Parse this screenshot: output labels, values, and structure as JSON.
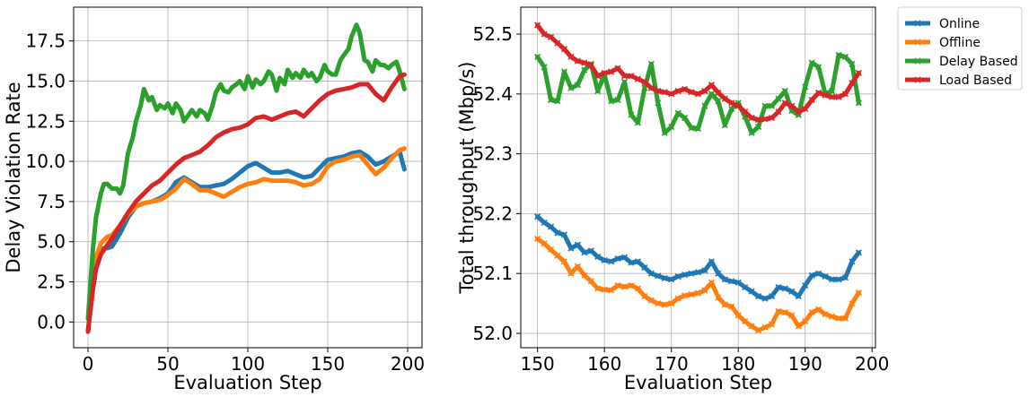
{
  "colors": {
    "Online": "#1f77b4",
    "Offline": "#ff7f0e",
    "Delay Based": "#2ca02c",
    "Load Based": "#d62728"
  },
  "chart_data": [
    {
      "type": "line",
      "xlabel": "Evaluation Step",
      "ylabel": "Delay Violation Rate",
      "xlim": [
        -9,
        209
      ],
      "ylim": [
        -1.6,
        19.6
      ],
      "xticks": [
        0,
        50,
        100,
        150,
        200
      ],
      "yticks": [
        0.0,
        2.5,
        5.0,
        7.5,
        10.0,
        12.5,
        15.0,
        17.5
      ],
      "xtick_labels": [
        "0",
        "50",
        "100",
        "150",
        "200"
      ],
      "ytick_labels": [
        "0.0",
        "2.5",
        "5.0",
        "7.5",
        "10.0",
        "12.5",
        "15.0",
        "17.5"
      ],
      "grid": true,
      "series": [
        {
          "name": "Online",
          "x": [
            0,
            3,
            5,
            8,
            10,
            12,
            15,
            20,
            25,
            30,
            35,
            40,
            45,
            50,
            55,
            60,
            65,
            70,
            75,
            80,
            85,
            90,
            95,
            100,
            105,
            110,
            115,
            120,
            125,
            130,
            135,
            140,
            145,
            150,
            155,
            160,
            165,
            170,
            175,
            180,
            185,
            190,
            195,
            198
          ],
          "values": [
            -0.6,
            2.4,
            3.6,
            4.4,
            4.6,
            4.6,
            4.7,
            5.5,
            6.5,
            7.2,
            7.4,
            7.5,
            7.7,
            8.0,
            8.7,
            9.0,
            8.7,
            8.4,
            8.4,
            8.5,
            8.6,
            8.9,
            9.3,
            9.7,
            9.9,
            9.6,
            9.3,
            9.3,
            9.4,
            9.2,
            9.0,
            9.1,
            9.6,
            10.1,
            10.2,
            10.3,
            10.5,
            10.6,
            10.3,
            9.8,
            10.0,
            10.3,
            10.6,
            9.5
          ]
        },
        {
          "name": "Offline",
          "x": [
            0,
            3,
            5,
            8,
            10,
            12,
            15,
            20,
            25,
            30,
            35,
            40,
            45,
            50,
            55,
            60,
            65,
            70,
            75,
            80,
            85,
            90,
            95,
            100,
            105,
            110,
            115,
            120,
            125,
            130,
            135,
            140,
            145,
            150,
            155,
            160,
            165,
            170,
            175,
            180,
            185,
            190,
            195,
            198
          ],
          "values": [
            -0.6,
            2.6,
            4.0,
            4.9,
            5.1,
            5.3,
            5.4,
            6.0,
            6.7,
            7.2,
            7.4,
            7.5,
            7.6,
            7.9,
            8.3,
            8.9,
            8.6,
            8.2,
            8.2,
            8.0,
            7.8,
            8.1,
            8.4,
            8.6,
            8.7,
            8.9,
            8.8,
            8.8,
            8.8,
            8.7,
            8.5,
            8.6,
            8.9,
            9.7,
            10.0,
            10.1,
            10.3,
            10.4,
            9.8,
            9.2,
            9.6,
            10.2,
            10.7,
            10.8
          ]
        },
        {
          "name": "Delay Based",
          "x": [
            0,
            3,
            5,
            8,
            10,
            12,
            15,
            18,
            20,
            22,
            25,
            28,
            30,
            33,
            35,
            38,
            40,
            43,
            45,
            48,
            50,
            53,
            55,
            58,
            60,
            63,
            65,
            68,
            70,
            73,
            75,
            78,
            80,
            83,
            85,
            88,
            90,
            93,
            95,
            98,
            100,
            103,
            105,
            108,
            110,
            113,
            115,
            118,
            120,
            123,
            125,
            128,
            130,
            133,
            135,
            138,
            140,
            143,
            145,
            148,
            150,
            153,
            155,
            158,
            160,
            163,
            165,
            168,
            170,
            173,
            175,
            178,
            180,
            183,
            185,
            188,
            190,
            193,
            195,
            198
          ],
          "values": [
            0.2,
            4.5,
            6.5,
            8.0,
            8.6,
            8.6,
            8.3,
            8.3,
            8.0,
            8.5,
            10.5,
            11.5,
            12.5,
            13.5,
            14.5,
            13.8,
            14.0,
            13.2,
            13.5,
            13.3,
            13.6,
            13.0,
            13.6,
            13.2,
            12.5,
            12.9,
            13.2,
            12.8,
            13.2,
            13.0,
            12.6,
            13.5,
            14.3,
            14.8,
            14.4,
            14.3,
            14.6,
            14.8,
            15.0,
            14.5,
            15.3,
            14.6,
            15.1,
            14.8,
            15.0,
            15.6,
            15.4,
            14.4,
            15.2,
            14.8,
            15.7,
            15.2,
            15.5,
            15.2,
            15.7,
            15.3,
            15.5,
            15.0,
            15.2,
            16.0,
            15.6,
            15.4,
            15.4,
            16.3,
            16.6,
            17.0,
            17.8,
            18.5,
            18.0,
            16.3,
            16.2,
            15.6,
            16.3,
            16.0,
            16.0,
            15.8,
            16.0,
            16.2,
            15.6,
            14.5
          ]
        },
        {
          "name": "Load Based",
          "x": [
            0,
            3,
            5,
            8,
            10,
            15,
            20,
            25,
            30,
            35,
            40,
            45,
            50,
            55,
            60,
            65,
            70,
            75,
            80,
            85,
            90,
            95,
            100,
            105,
            110,
            115,
            120,
            125,
            130,
            135,
            140,
            145,
            150,
            155,
            160,
            165,
            170,
            175,
            180,
            185,
            190,
            195,
            198
          ],
          "values": [
            -0.6,
            2.0,
            3.3,
            4.2,
            4.5,
            5.2,
            6.0,
            6.8,
            7.5,
            8.0,
            8.5,
            8.8,
            9.3,
            9.8,
            10.2,
            10.4,
            10.6,
            11.0,
            11.5,
            11.8,
            12.0,
            12.1,
            12.3,
            12.7,
            12.8,
            12.6,
            12.8,
            13.0,
            13.1,
            12.8,
            13.3,
            13.8,
            14.2,
            14.4,
            14.5,
            14.6,
            14.8,
            14.8,
            14.2,
            13.8,
            14.6,
            15.3,
            15.4
          ]
        }
      ]
    },
    {
      "type": "line",
      "xlabel": "Evaluation Step",
      "ylabel": "Total throughput (Mbp/s)",
      "xlim": [
        147.5,
        200.5
      ],
      "ylim": [
        51.976,
        52.545
      ],
      "xticks": [
        150,
        160,
        170,
        180,
        190,
        200
      ],
      "yticks": [
        52.0,
        52.1,
        52.2,
        52.3,
        52.4,
        52.5
      ],
      "xtick_labels": [
        "150",
        "160",
        "170",
        "180",
        "190",
        "200"
      ],
      "ytick_labels": [
        "52.0",
        "52.1",
        "52.2",
        "52.3",
        "52.4",
        "52.5"
      ],
      "grid": true,
      "legend": {
        "placement": "outside-upper-right",
        "entries": [
          "Online",
          "Offline",
          "Delay Based",
          "Load Based"
        ]
      },
      "series": [
        {
          "name": "Online",
          "x": [
            150,
            151,
            152,
            153,
            154,
            155,
            156,
            157,
            158,
            159,
            160,
            161,
            162,
            163,
            164,
            165,
            166,
            167,
            168,
            169,
            170,
            171,
            172,
            173,
            174,
            175,
            176,
            177,
            178,
            179,
            180,
            181,
            182,
            183,
            184,
            185,
            186,
            187,
            188,
            189,
            190,
            191,
            192,
            193,
            194,
            195,
            196,
            197,
            198
          ],
          "values": [
            52.195,
            52.185,
            52.178,
            52.168,
            52.165,
            52.142,
            52.148,
            52.135,
            52.138,
            52.128,
            52.122,
            52.12,
            52.125,
            52.127,
            52.118,
            52.12,
            52.11,
            52.1,
            52.096,
            52.092,
            52.09,
            52.095,
            52.098,
            52.1,
            52.102,
            52.105,
            52.12,
            52.1,
            52.09,
            52.087,
            52.085,
            52.077,
            52.07,
            52.062,
            52.058,
            52.062,
            52.077,
            52.075,
            52.07,
            52.062,
            52.08,
            52.097,
            52.1,
            52.095,
            52.09,
            52.09,
            52.093,
            52.12,
            52.135
          ]
        },
        {
          "name": "Offline",
          "x": [
            150,
            151,
            152,
            153,
            154,
            155,
            156,
            157,
            158,
            159,
            160,
            161,
            162,
            163,
            164,
            165,
            166,
            167,
            168,
            169,
            170,
            171,
            172,
            173,
            174,
            175,
            176,
            177,
            178,
            179,
            180,
            181,
            182,
            183,
            184,
            185,
            186,
            187,
            188,
            189,
            190,
            191,
            192,
            193,
            194,
            195,
            196,
            197,
            198
          ],
          "values": [
            52.158,
            52.15,
            52.14,
            52.13,
            52.12,
            52.1,
            52.112,
            52.097,
            52.087,
            52.075,
            52.073,
            52.072,
            52.08,
            52.078,
            52.08,
            52.075,
            52.062,
            52.055,
            52.05,
            52.048,
            52.05,
            52.058,
            52.063,
            52.065,
            52.067,
            52.072,
            52.085,
            52.06,
            52.048,
            52.045,
            52.03,
            52.02,
            52.012,
            52.005,
            52.01,
            52.015,
            52.037,
            52.035,
            52.03,
            52.012,
            52.02,
            52.035,
            52.04,
            52.032,
            52.028,
            52.025,
            52.025,
            52.05,
            52.068
          ]
        },
        {
          "name": "Delay Based",
          "x": [
            150,
            151,
            152,
            153,
            154,
            155,
            156,
            157,
            158,
            159,
            160,
            161,
            162,
            163,
            164,
            165,
            166,
            167,
            168,
            169,
            170,
            171,
            172,
            173,
            174,
            175,
            176,
            177,
            178,
            179,
            180,
            181,
            182,
            183,
            184,
            185,
            186,
            187,
            188,
            189,
            190,
            191,
            192,
            193,
            194,
            195,
            196,
            197,
            198
          ],
          "values": [
            52.462,
            52.445,
            52.39,
            52.388,
            52.437,
            52.41,
            52.415,
            52.44,
            52.45,
            52.405,
            52.432,
            52.388,
            52.39,
            52.42,
            52.365,
            52.352,
            52.41,
            52.45,
            52.385,
            52.335,
            52.345,
            52.368,
            52.36,
            52.343,
            52.342,
            52.38,
            52.4,
            52.388,
            52.348,
            52.375,
            52.385,
            52.362,
            52.335,
            52.345,
            52.38,
            52.38,
            52.392,
            52.405,
            52.372,
            52.365,
            52.412,
            52.452,
            52.445,
            52.4,
            52.405,
            52.465,
            52.462,
            52.45,
            52.385
          ]
        },
        {
          "name": "Load Based",
          "x": [
            150,
            151,
            152,
            153,
            154,
            155,
            156,
            157,
            158,
            159,
            160,
            161,
            162,
            163,
            164,
            165,
            166,
            167,
            168,
            169,
            170,
            171,
            172,
            173,
            174,
            175,
            176,
            177,
            178,
            179,
            180,
            181,
            182,
            183,
            184,
            185,
            186,
            187,
            188,
            189,
            190,
            191,
            192,
            193,
            194,
            195,
            196,
            197,
            198
          ],
          "values": [
            52.515,
            52.5,
            52.495,
            52.485,
            52.475,
            52.462,
            52.455,
            52.452,
            52.448,
            52.43,
            52.435,
            52.437,
            52.443,
            52.43,
            52.43,
            52.425,
            52.42,
            52.41,
            52.405,
            52.403,
            52.4,
            52.405,
            52.408,
            52.403,
            52.4,
            52.405,
            52.415,
            52.402,
            52.392,
            52.385,
            52.38,
            52.37,
            52.36,
            52.357,
            52.358,
            52.36,
            52.37,
            52.385,
            52.38,
            52.37,
            52.375,
            52.39,
            52.402,
            52.398,
            52.395,
            52.395,
            52.4,
            52.418,
            52.435
          ]
        }
      ]
    }
  ]
}
